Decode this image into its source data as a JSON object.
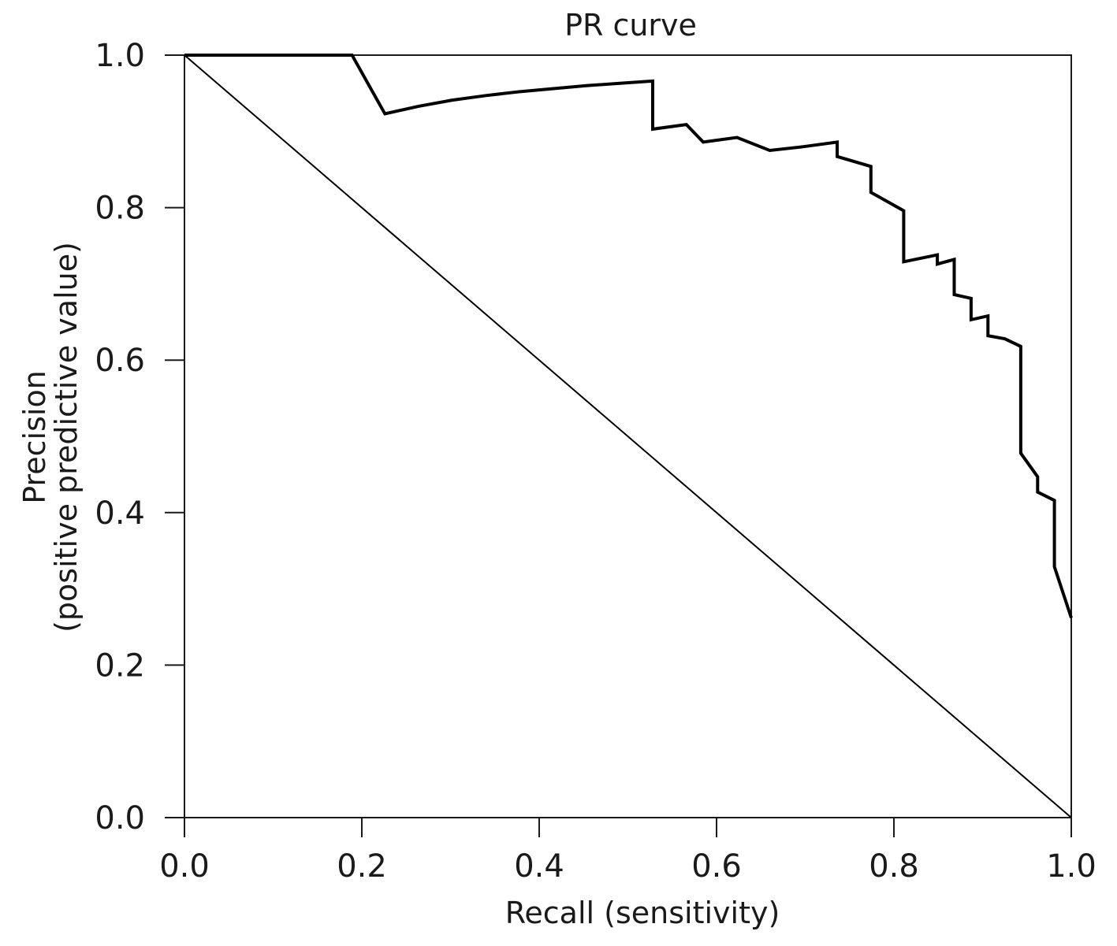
{
  "chart_data": {
    "type": "line",
    "title": "PR curve",
    "xlabel": "Recall (sensitivity)",
    "ylabel_lines": [
      "Precision",
      "(positive predictive value)"
    ],
    "xlim": [
      0,
      1
    ],
    "ylim": [
      0,
      1
    ],
    "x_ticks": [
      0.0,
      0.2,
      0.4,
      0.6,
      0.8,
      1.0
    ],
    "y_ticks": [
      0.0,
      0.2,
      0.4,
      0.6,
      0.8,
      1.0
    ],
    "x_tick_labels": [
      "0.0",
      "0.2",
      "0.4",
      "0.6",
      "0.8",
      "1.0"
    ],
    "y_tick_labels": [
      "0.0",
      "0.2",
      "0.4",
      "0.6",
      "0.8",
      "1.0"
    ],
    "grid": false,
    "series": [
      {
        "type": "reference-line",
        "x": [
          0.0,
          1.0
        ],
        "y": [
          1.0,
          0.0
        ],
        "color": "#000000"
      },
      {
        "type": "line",
        "x": [
          0.0,
          0.094,
          0.189,
          0.226,
          0.264,
          0.302,
          0.34,
          0.377,
          0.415,
          0.453,
          0.491,
          0.528,
          0.528,
          0.566,
          0.585,
          0.623,
          0.66,
          0.698,
          0.736,
          0.736,
          0.774,
          0.774,
          0.811,
          0.811,
          0.849,
          0.849,
          0.868,
          0.868,
          0.887,
          0.887,
          0.906,
          0.906,
          0.925,
          0.943,
          0.943,
          0.962,
          0.962,
          0.981,
          0.981,
          1.0
        ],
        "y": [
          1.0,
          1.0,
          1.0,
          0.923,
          0.933,
          0.941,
          0.947,
          0.952,
          0.956,
          0.96,
          0.963,
          0.966,
          0.903,
          0.909,
          0.886,
          0.892,
          0.875,
          0.88,
          0.886,
          0.867,
          0.854,
          0.82,
          0.796,
          0.729,
          0.738,
          0.726,
          0.732,
          0.686,
          0.681,
          0.653,
          0.658,
          0.632,
          0.628,
          0.618,
          0.478,
          0.447,
          0.427,
          0.416,
          0.329,
          0.262
        ],
        "color": "#000000"
      }
    ]
  }
}
